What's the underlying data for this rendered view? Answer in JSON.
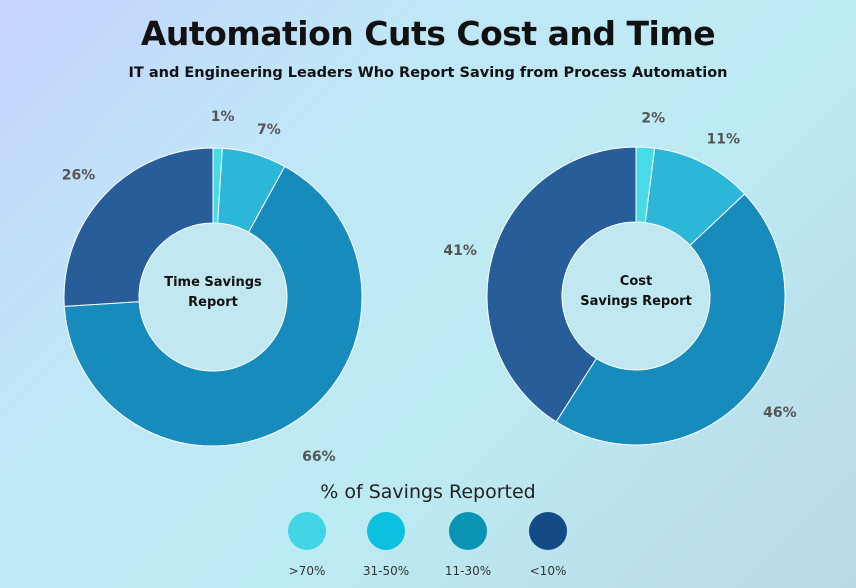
{
  "title": "Automation Cuts Cost and Time",
  "subtitle": "IT and Engineering Leaders Who Report Saving from Process Automation",
  "legend": {
    "title": "% of Savings Reported",
    "items": [
      {
        "label": ">70%",
        "color": "#40d4e4"
      },
      {
        "label": "31-50%",
        "color": "#0cc0e0"
      },
      {
        "label": "11-30%",
        "color": "#0b93b4"
      },
      {
        "label": "<10%",
        "color": "#144a86"
      }
    ]
  },
  "chart_data": [
    {
      "type": "pie",
      "subtype": "donut",
      "center_label": [
        "Time Savings",
        "Report"
      ],
      "categories": [
        ">70%",
        "31-50%",
        "11-30%",
        "<10%"
      ],
      "values": [
        1,
        7,
        66,
        26
      ],
      "labels": [
        "1%",
        "7%",
        "66%",
        "26%"
      ],
      "colors": [
        "#47dbe8",
        "#2cb6d7",
        "#188bbd",
        "#275e9a"
      ]
    },
    {
      "type": "pie",
      "subtype": "donut",
      "center_label": [
        "Cost",
        "Savings Report"
      ],
      "categories": [
        ">70%",
        "31-50%",
        "11-30%",
        "<10%"
      ],
      "values": [
        2,
        11,
        46,
        41
      ],
      "labels": [
        "2%",
        "11%",
        "46%",
        "41%"
      ],
      "colors": [
        "#47dbe8",
        "#2cb6d7",
        "#188bbd",
        "#275e9a"
      ]
    }
  ]
}
